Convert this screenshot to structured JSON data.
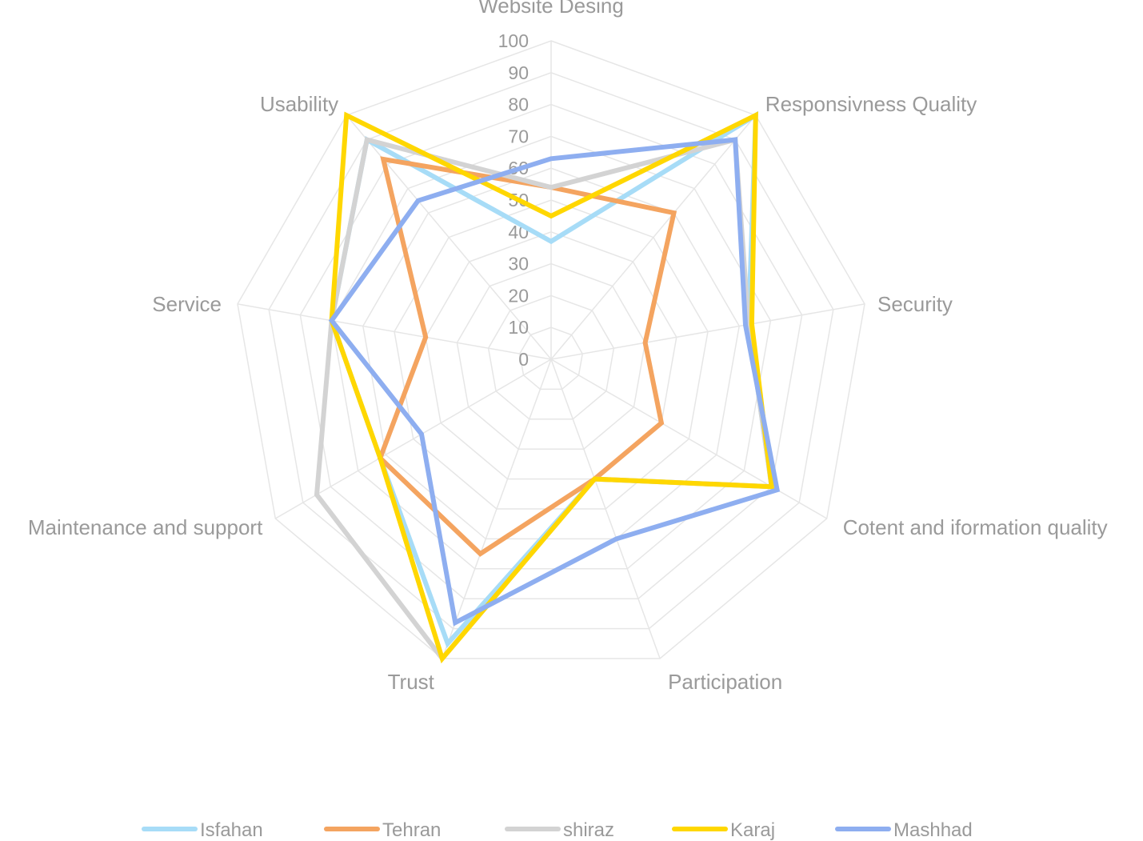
{
  "chart_data": {
    "type": "radar",
    "title": "",
    "axes": [
      "Website Desing",
      "Responsivness Quality",
      "Security",
      "Cotent and iformation quality",
      "Participation",
      "Trust",
      "Maintenance and support",
      "Service",
      "Usability"
    ],
    "rlim": [
      0,
      100
    ],
    "ticks": [
      "0",
      "10",
      "20",
      "30",
      "40",
      "50",
      "60",
      "70",
      "80",
      "90",
      "100"
    ],
    "tick_values": [
      0,
      10,
      20,
      30,
      40,
      50,
      60,
      70,
      80,
      90,
      100
    ],
    "grid": true,
    "legend_position": "bottom",
    "series": [
      {
        "name": "Isfahan",
        "color": "#a7dcf7",
        "values": [
          37,
          100,
          63,
          80,
          40,
          95,
          62,
          70,
          90
        ]
      },
      {
        "name": "Tehran",
        "color": "#f4a460",
        "values": [
          54,
          60,
          30,
          40,
          40,
          65,
          62,
          40,
          82
        ]
      },
      {
        "name": "shiraz",
        "color": "#d3d3d3",
        "values": [
          54,
          90,
          63,
          80,
          40,
          100,
          85,
          70,
          90
        ]
      },
      {
        "name": "Karaj",
        "color": "#ffd700",
        "values": [
          45,
          100,
          64,
          80,
          40,
          100,
          62,
          70,
          100
        ]
      },
      {
        "name": "Mashhad",
        "color": "#8eaef0",
        "values": [
          63,
          90,
          62,
          82,
          60,
          88,
          47,
          70,
          65
        ]
      }
    ]
  }
}
